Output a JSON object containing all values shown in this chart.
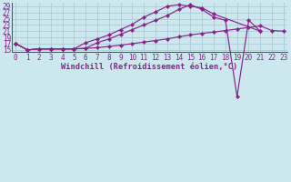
{
  "xlabel": "Windchill (Refroidissement éolien,°C)",
  "background_color": "#cce8ee",
  "grid_color": "#aaccd4",
  "line_color": "#882288",
  "xlim": [
    -0.3,
    23.3
  ],
  "ylim": [
    14.3,
    30.2
  ],
  "yticks": [
    15,
    17,
    19,
    21,
    23,
    25,
    27,
    29
  ],
  "xticks": [
    0,
    1,
    2,
    3,
    4,
    5,
    6,
    7,
    8,
    9,
    10,
    11,
    12,
    13,
    14,
    15,
    16,
    17,
    18,
    19,
    20,
    21,
    22,
    23
  ],
  "line_a_x": [
    0,
    1,
    2,
    3,
    4,
    5,
    6,
    7,
    8,
    9,
    10,
    11,
    12,
    13,
    14,
    15,
    16,
    17,
    21
  ],
  "line_a_y": [
    17,
    15,
    15.3,
    15.3,
    15.3,
    15.3,
    17.3,
    18.5,
    19.8,
    21.5,
    23.2,
    25.5,
    27.2,
    29.0,
    29.5,
    29.0,
    28.5,
    26.5,
    21.0
  ],
  "line_b_x": [
    0,
    1,
    2,
    3,
    4,
    5,
    6,
    7,
    8,
    9,
    10,
    11,
    12,
    13,
    14,
    15,
    16,
    17,
    18,
    19,
    20,
    21
  ],
  "line_b_y": [
    17,
    15,
    15.3,
    15.3,
    15.3,
    15.3,
    15.5,
    17.3,
    18.5,
    20.0,
    21.5,
    23.0,
    24.5,
    26.0,
    28.0,
    29.5,
    28.0,
    25.5,
    24.5,
    0,
    24.5,
    21.0
  ],
  "line_c_x": [
    0,
    1,
    2,
    3,
    4,
    5,
    6,
    7,
    8,
    9,
    10,
    11,
    12,
    13,
    14,
    15,
    16,
    17,
    18,
    19,
    20,
    21,
    22,
    23
  ],
  "line_c_y": [
    17,
    15,
    15.3,
    15.3,
    15.3,
    15.3,
    15.5,
    15.7,
    16.1,
    16.5,
    17.0,
    17.5,
    18.0,
    18.5,
    19.2,
    19.8,
    20.3,
    20.7,
    21.2,
    21.7,
    22.2,
    22.7,
    21.2,
    21.0
  ],
  "tick_fontsize": 5.5,
  "label_fontsize": 6.2,
  "linewidth": 0.85,
  "markersize": 2.2
}
